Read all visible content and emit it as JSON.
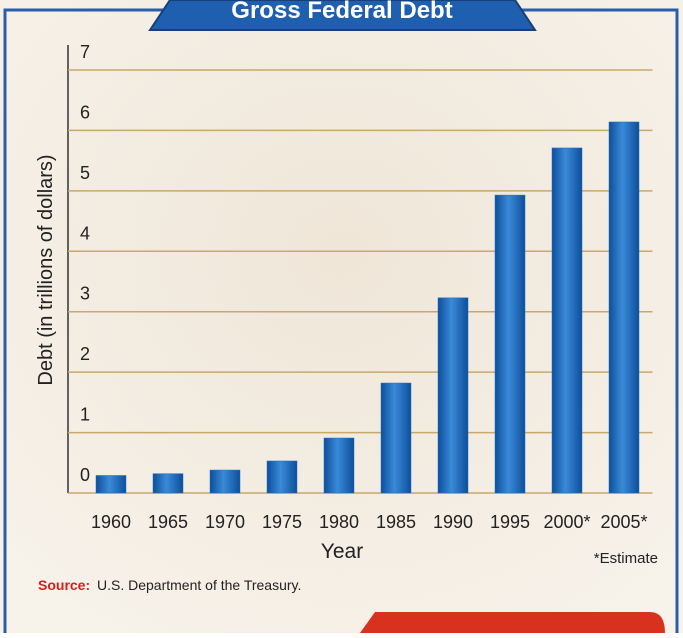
{
  "chart_data": {
    "type": "bar",
    "title": "Gross Federal Debt",
    "categories": [
      "1960",
      "1965",
      "1970",
      "1975",
      "1980",
      "1985",
      "1990",
      "1995",
      "2000*",
      "2005*"
    ],
    "values": [
      0.29,
      0.32,
      0.38,
      0.53,
      0.91,
      1.82,
      3.23,
      4.93,
      5.71,
      6.14
    ],
    "color": "#1f6fc0",
    "ylim": [
      0,
      7
    ],
    "yticks": [
      0,
      1,
      2,
      3,
      4,
      5,
      6,
      7
    ],
    "grid": true,
    "x_label": "Year",
    "y_label": "Debt (in trillions of dollars)",
    "note": "*Estimate",
    "source_label": "Source:",
    "source": "U.S. Department of the Treasury."
  }
}
